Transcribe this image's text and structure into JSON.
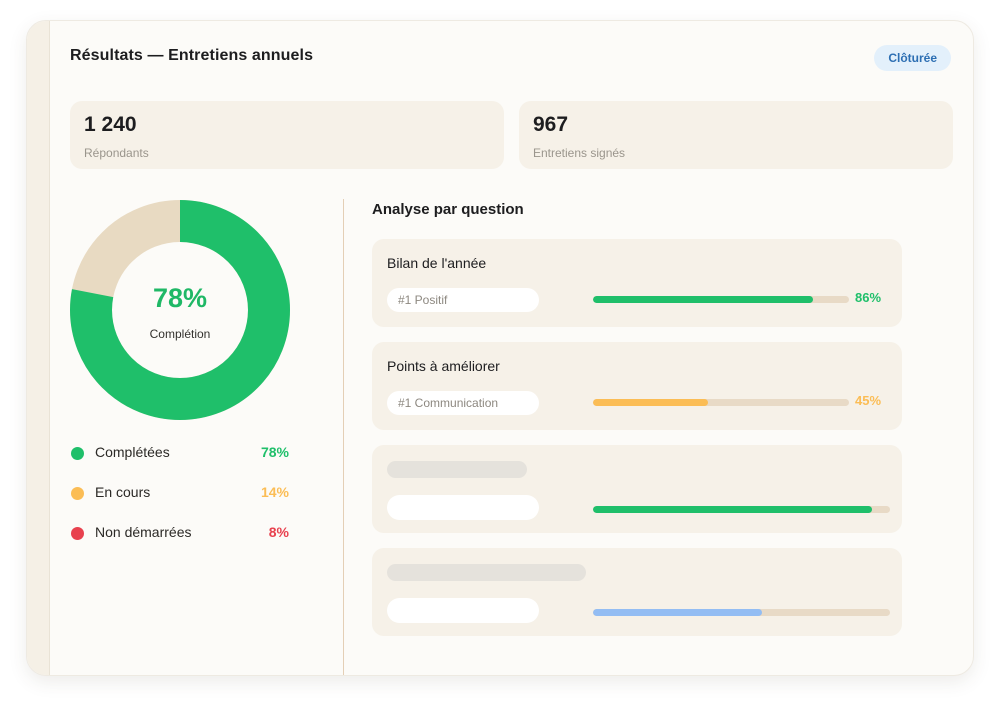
{
  "header": {
    "title": "Résultats — Entretiens annuels",
    "status_badge": "Clôturée"
  },
  "stats": [
    {
      "value": "1 240",
      "label": "Répondants"
    },
    {
      "value": "967",
      "label": "Entretiens signés"
    }
  ],
  "completion": {
    "value_label": "78%",
    "label": "Complétion",
    "percent": 78
  },
  "legend": [
    {
      "label": "Complétées",
      "value": "78%",
      "color": "#1fbf6a"
    },
    {
      "label": "En cours",
      "value": "14%",
      "color": "#fbbd55"
    },
    {
      "label": "Non démarrées",
      "value": "8%",
      "color": "#e8414e"
    }
  ],
  "analysis": {
    "title": "Analyse par question",
    "questions": [
      {
        "title": "Bilan de l'année",
        "tag": "#1 Positif",
        "value_label": "86%",
        "percent": 86,
        "color": "#1fbf6a"
      },
      {
        "title": "Points à améliorer",
        "tag": "#1 Communication",
        "value_label": "45%",
        "percent": 45,
        "color": "#fbbd55"
      }
    ],
    "placeholders": [
      {
        "percent": 94,
        "color": "#1fbf6a"
      },
      {
        "percent": 57,
        "color": "#93bdf3"
      }
    ]
  },
  "colors": {
    "donut_remaining": "#e8dac2",
    "accent_green": "#1fbf6a",
    "accent_orange": "#fbbd55",
    "accent_red": "#e8414e",
    "badge_blue": "#2d6fb3"
  }
}
